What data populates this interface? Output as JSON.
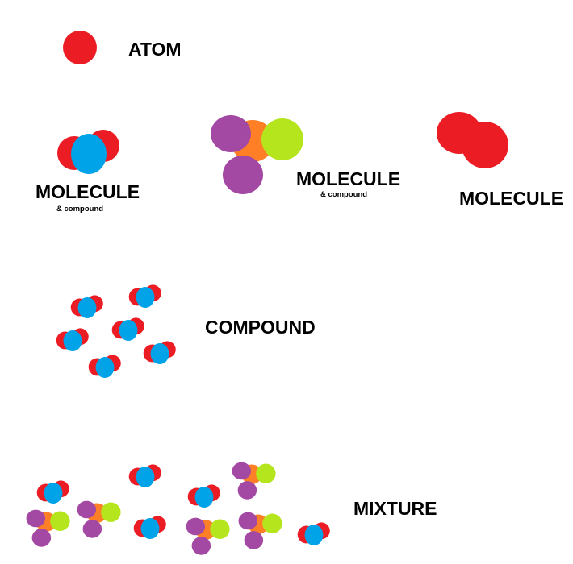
{
  "colors": {
    "red": "#ec1c24",
    "blue": "#00a2e8",
    "purple": "#a349a4",
    "orange": "#ff7f27",
    "lime": "#b5e61d"
  },
  "labels": {
    "atom": "ATOM",
    "molecule_1": "MOLECULE",
    "compound_note_1": "& compound",
    "molecule_2": "MOLECULE",
    "compound_note_2": "& compound",
    "molecule_3": "MOLECULE",
    "compound": "COMPOUND",
    "mixture": "MIXTURE"
  }
}
